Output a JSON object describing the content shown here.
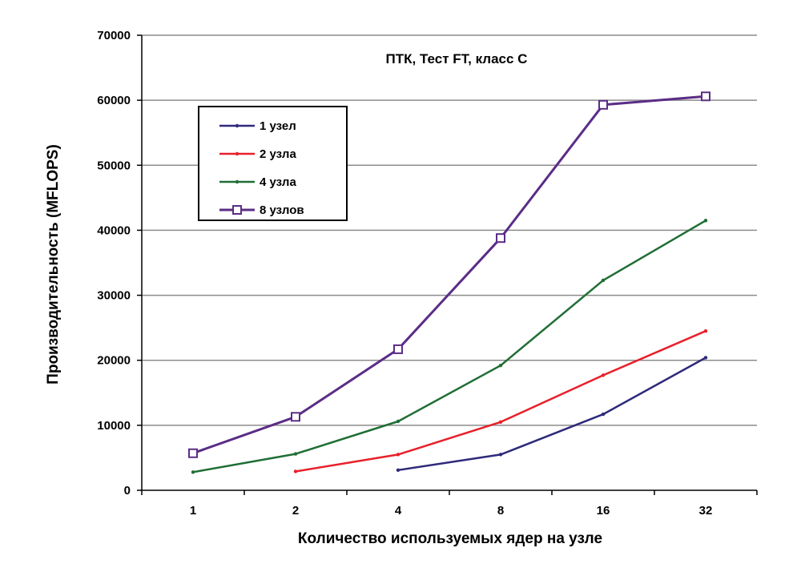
{
  "chart_data": {
    "type": "line",
    "title": "ПТК, Тест FT, класс С",
    "xlabel": "Количество  используемых ядер на узле",
    "ylabel": "Производительность (MFLOPS)",
    "categories": [
      "1",
      "2",
      "4",
      "8",
      "16",
      "32"
    ],
    "ylim": [
      0,
      70000
    ],
    "yticks": [
      0,
      10000,
      20000,
      30000,
      40000,
      50000,
      60000,
      70000
    ],
    "grid": "horizontal",
    "legend_position": "top-left",
    "series": [
      {
        "name": "1 узел",
        "color": "#2e2a7a",
        "marker": "dot",
        "values": [
          null,
          null,
          3100,
          5500,
          11700,
          20400
        ]
      },
      {
        "name": "2 узла",
        "color": "#e8202a",
        "marker": "dot",
        "values": [
          null,
          2900,
          5500,
          10500,
          17700,
          24500
        ]
      },
      {
        "name": "4 узла",
        "color": "#1f6e35",
        "marker": "dot",
        "values": [
          2800,
          5600,
          10600,
          19200,
          32300,
          41500
        ]
      },
      {
        "name": "8 узлов",
        "color": "#5b2d86",
        "marker": "square",
        "values": [
          5700,
          11300,
          21700,
          38800,
          59300,
          60600
        ]
      }
    ]
  }
}
